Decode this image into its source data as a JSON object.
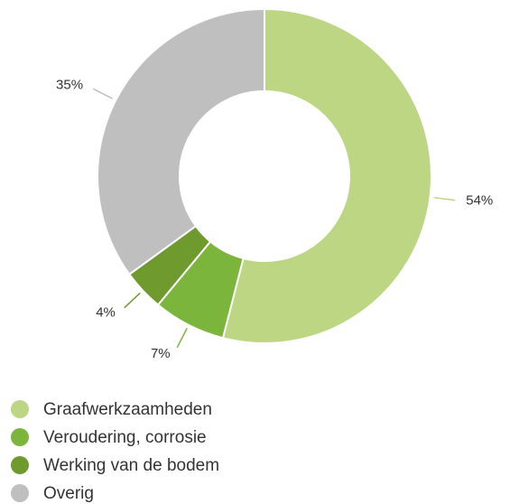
{
  "chart_data": {
    "type": "pie",
    "categories": [
      "Graafwerkzaamheden",
      "Veroudering, corrosie",
      "Werking van de bodem",
      "Overig"
    ],
    "values": [
      54,
      7,
      4,
      35
    ],
    "value_labels": [
      "54%",
      "7%",
      "4%",
      "35%"
    ],
    "colors": [
      "#bcd683",
      "#7cb53b",
      "#6e9a2e",
      "#bfbfbf"
    ],
    "donut": true
  }
}
